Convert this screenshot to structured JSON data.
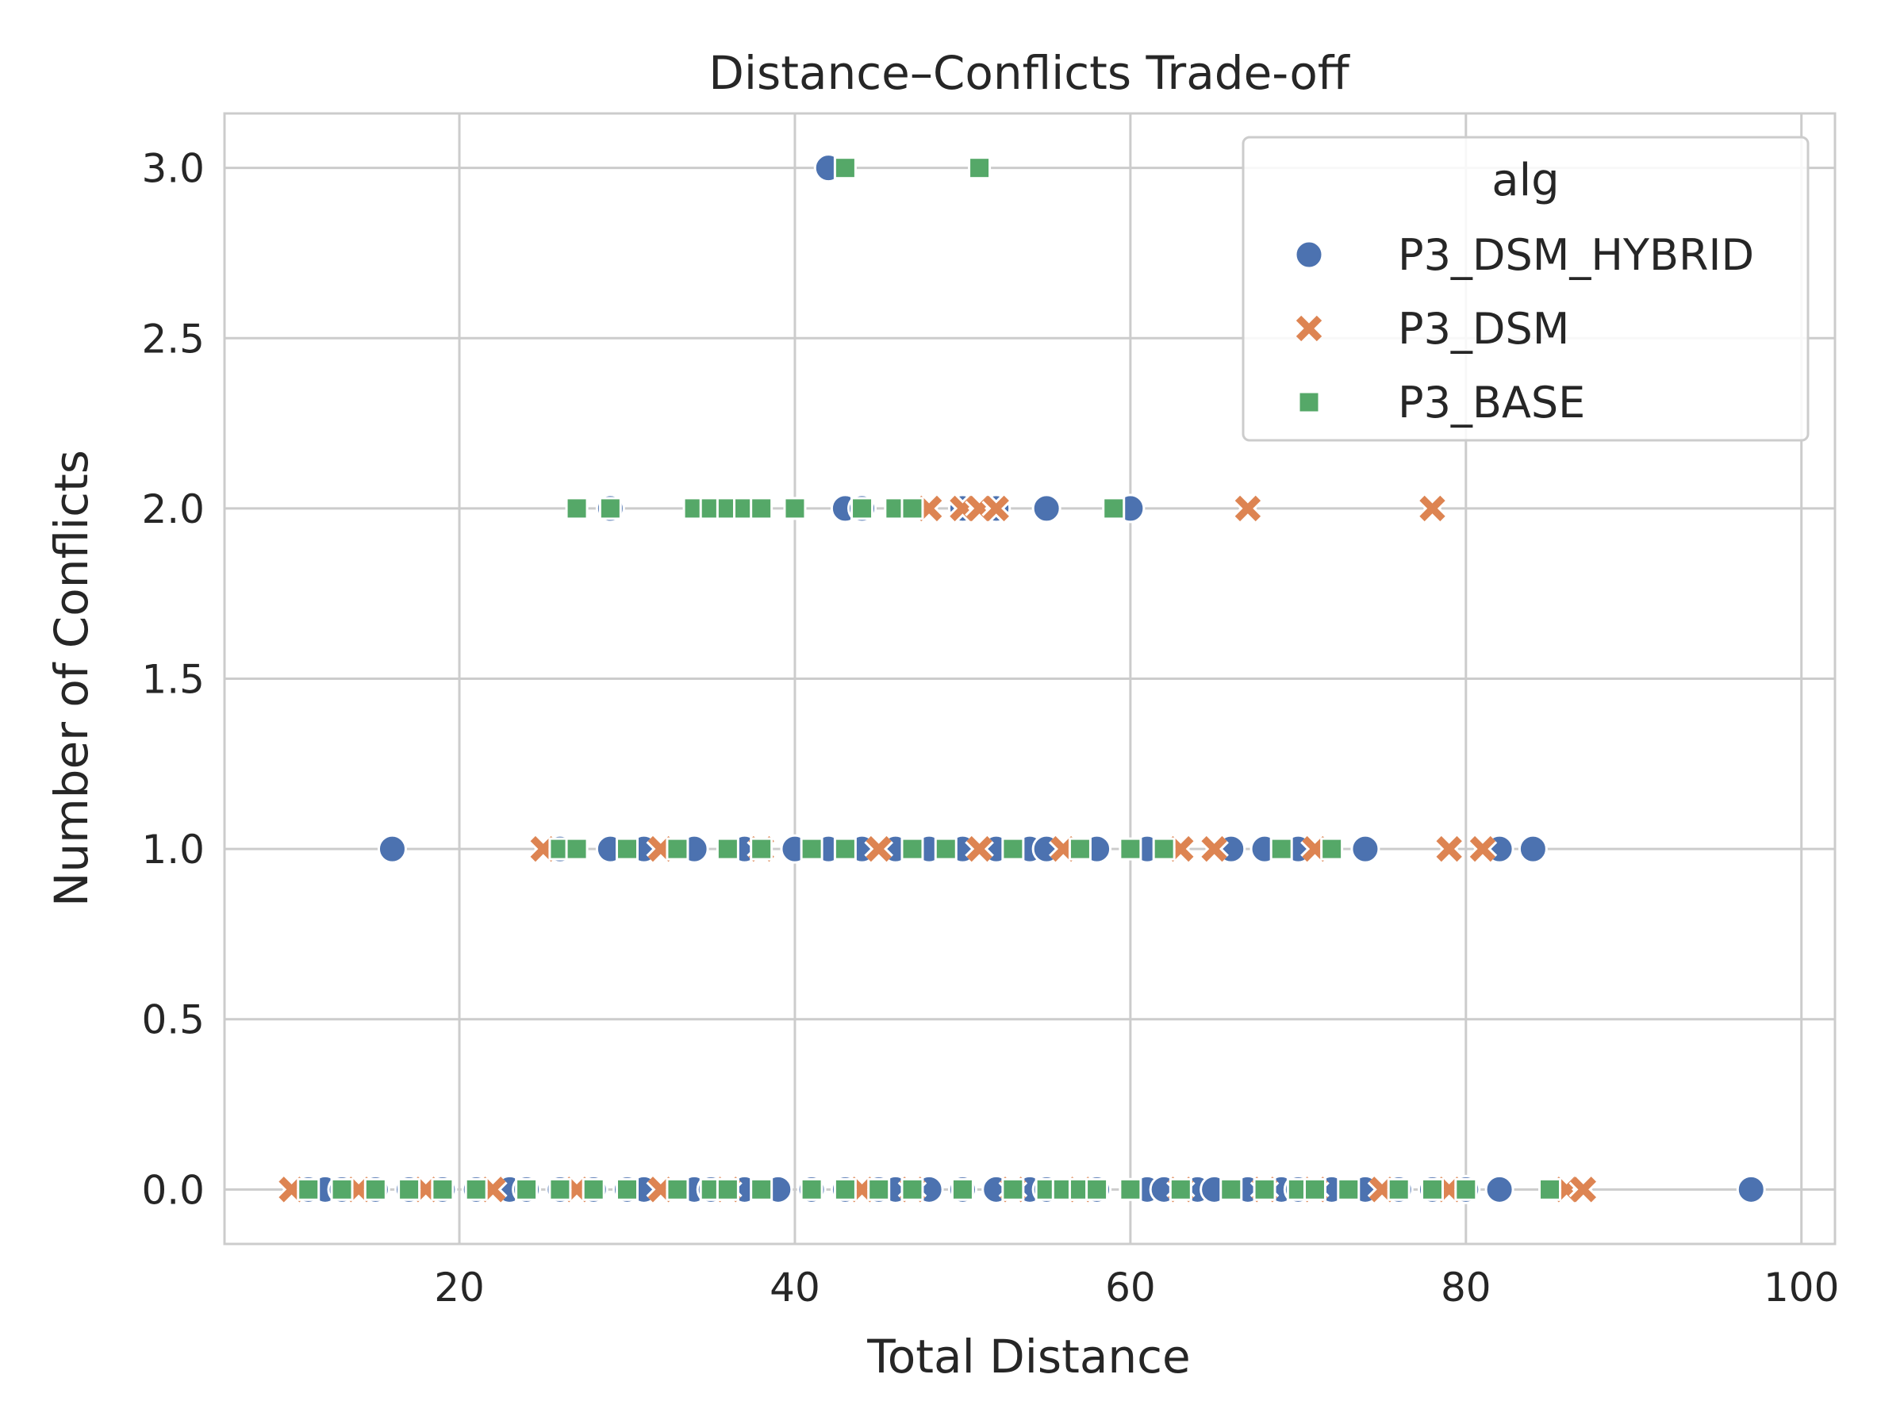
{
  "chart_data": {
    "type": "scatter",
    "title": "Distance–Conflicts Trade-off",
    "xlabel": "Total Distance",
    "ylabel": "Number of Conflicts",
    "xlim": [
      6,
      102
    ],
    "ylim": [
      -0.16,
      3.16
    ],
    "xticks": [
      "20",
      "40",
      "60",
      "80",
      "100"
    ],
    "xtick_values": [
      20,
      40,
      60,
      80,
      100
    ],
    "yticks": [
      "0.0",
      "0.5",
      "1.0",
      "1.5",
      "2.0",
      "2.5",
      "3.0"
    ],
    "ytick_values": [
      0,
      0.5,
      1,
      1.5,
      2,
      2.5,
      3
    ],
    "grid": true,
    "legend": {
      "title": "alg",
      "placement": "top-right"
    },
    "series": [
      {
        "name": "P3_DSM_HYBRID",
        "marker": "circle",
        "color": "#4c72b0",
        "points": [
          [
            11,
            0
          ],
          [
            12,
            0
          ],
          [
            13,
            0
          ],
          [
            15,
            0
          ],
          [
            17,
            0
          ],
          [
            19,
            0
          ],
          [
            21,
            0
          ],
          [
            23,
            0
          ],
          [
            24,
            0
          ],
          [
            26,
            0
          ],
          [
            28,
            0
          ],
          [
            30,
            0
          ],
          [
            31,
            0
          ],
          [
            34,
            0
          ],
          [
            35,
            0
          ],
          [
            37,
            0
          ],
          [
            39,
            0
          ],
          [
            41,
            0
          ],
          [
            43,
            0
          ],
          [
            45,
            0
          ],
          [
            46,
            0
          ],
          [
            48,
            0
          ],
          [
            50,
            0
          ],
          [
            52,
            0
          ],
          [
            54,
            0
          ],
          [
            55,
            0
          ],
          [
            58,
            0
          ],
          [
            61,
            0
          ],
          [
            62,
            0
          ],
          [
            64,
            0
          ],
          [
            65,
            0
          ],
          [
            67,
            0
          ],
          [
            69,
            0
          ],
          [
            70,
            0
          ],
          [
            72,
            0
          ],
          [
            74,
            0
          ],
          [
            76,
            0
          ],
          [
            78,
            0
          ],
          [
            80,
            0
          ],
          [
            82,
            0
          ],
          [
            97,
            0
          ],
          [
            16,
            1
          ],
          [
            26,
            1
          ],
          [
            29,
            1
          ],
          [
            31,
            1
          ],
          [
            34,
            1
          ],
          [
            37,
            1
          ],
          [
            40,
            1
          ],
          [
            42,
            1
          ],
          [
            44,
            1
          ],
          [
            46,
            1
          ],
          [
            48,
            1
          ],
          [
            50,
            1
          ],
          [
            52,
            1
          ],
          [
            54,
            1
          ],
          [
            55,
            1
          ],
          [
            58,
            1
          ],
          [
            61,
            1
          ],
          [
            66,
            1
          ],
          [
            68,
            1
          ],
          [
            70,
            1
          ],
          [
            74,
            1
          ],
          [
            82,
            1
          ],
          [
            84,
            1
          ],
          [
            29,
            2
          ],
          [
            43,
            2
          ],
          [
            44,
            2
          ],
          [
            50,
            2
          ],
          [
            52,
            2
          ],
          [
            55,
            2
          ],
          [
            60,
            2
          ],
          [
            42,
            3
          ]
        ]
      },
      {
        "name": "P3_DSM",
        "marker": "x",
        "color": "#dd8452",
        "points": [
          [
            10,
            0
          ],
          [
            14,
            0
          ],
          [
            18,
            0
          ],
          [
            22,
            0
          ],
          [
            27,
            0
          ],
          [
            32,
            0
          ],
          [
            36,
            0
          ],
          [
            44,
            0
          ],
          [
            47,
            0
          ],
          [
            53,
            0
          ],
          [
            57,
            0
          ],
          [
            63,
            0
          ],
          [
            68,
            0
          ],
          [
            71,
            0
          ],
          [
            75,
            0
          ],
          [
            79,
            0
          ],
          [
            86,
            0
          ],
          [
            87,
            0
          ],
          [
            25,
            1
          ],
          [
            32,
            1
          ],
          [
            38,
            1
          ],
          [
            45,
            1
          ],
          [
            51,
            1
          ],
          [
            56,
            1
          ],
          [
            63,
            1
          ],
          [
            65,
            1
          ],
          [
            71,
            1
          ],
          [
            79,
            1
          ],
          [
            81,
            1
          ],
          [
            48,
            2
          ],
          [
            50,
            2
          ],
          [
            51,
            2
          ],
          [
            52,
            2
          ],
          [
            67,
            2
          ],
          [
            78,
            2
          ]
        ]
      },
      {
        "name": "P3_BASE",
        "marker": "square",
        "color": "#55a868",
        "points": [
          [
            11,
            0
          ],
          [
            13,
            0
          ],
          [
            15,
            0
          ],
          [
            17,
            0
          ],
          [
            19,
            0
          ],
          [
            21,
            0
          ],
          [
            24,
            0
          ],
          [
            26,
            0
          ],
          [
            28,
            0
          ],
          [
            30,
            0
          ],
          [
            33,
            0
          ],
          [
            35,
            0
          ],
          [
            36,
            0
          ],
          [
            38,
            0
          ],
          [
            41,
            0
          ],
          [
            43,
            0
          ],
          [
            45,
            0
          ],
          [
            47,
            0
          ],
          [
            50,
            0
          ],
          [
            53,
            0
          ],
          [
            55,
            0
          ],
          [
            56,
            0
          ],
          [
            57,
            0
          ],
          [
            58,
            0
          ],
          [
            60,
            0
          ],
          [
            63,
            0
          ],
          [
            66,
            0
          ],
          [
            68,
            0
          ],
          [
            70,
            0
          ],
          [
            71,
            0
          ],
          [
            73,
            0
          ],
          [
            76,
            0
          ],
          [
            78,
            0
          ],
          [
            80,
            0
          ],
          [
            85,
            0
          ],
          [
            26,
            1
          ],
          [
            27,
            1
          ],
          [
            30,
            1
          ],
          [
            33,
            1
          ],
          [
            36,
            1
          ],
          [
            38,
            1
          ],
          [
            41,
            1
          ],
          [
            43,
            1
          ],
          [
            47,
            1
          ],
          [
            49,
            1
          ],
          [
            53,
            1
          ],
          [
            57,
            1
          ],
          [
            60,
            1
          ],
          [
            62,
            1
          ],
          [
            69,
            1
          ],
          [
            72,
            1
          ],
          [
            27,
            2
          ],
          [
            29,
            2
          ],
          [
            34,
            2
          ],
          [
            35,
            2
          ],
          [
            36,
            2
          ],
          [
            37,
            2
          ],
          [
            38,
            2
          ],
          [
            40,
            2
          ],
          [
            44,
            2
          ],
          [
            46,
            2
          ],
          [
            47,
            2
          ],
          [
            59,
            2
          ],
          [
            43,
            3
          ],
          [
            51,
            3
          ]
        ]
      }
    ]
  }
}
